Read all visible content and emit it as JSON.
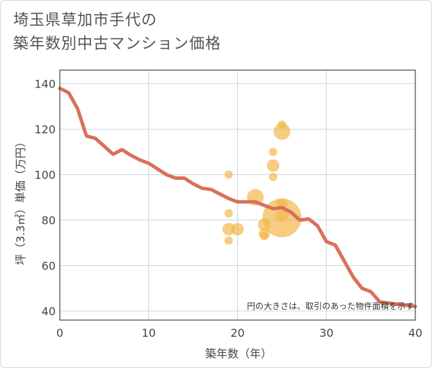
{
  "chart_data": {
    "type": "scatter",
    "title": "埼玉県草加市手代の築年数別中古マンション価格",
    "title_lines": [
      "埼玉県草加市手代の",
      "築年数別中古マンション価格"
    ],
    "xlabel": "築年数（年）",
    "ylabel": "坪（3.3㎡）単価（万円）",
    "xlim": [
      0,
      40
    ],
    "ylim": [
      36,
      146
    ],
    "xticks": [
      0,
      10,
      20,
      30,
      40
    ],
    "yticks": [
      40,
      60,
      80,
      100,
      120,
      140
    ],
    "grid": true,
    "note": "円の大きさは、取引のあった物件面積を示す",
    "colors": {
      "line": "#d9705a",
      "bubble": "#f2b84b",
      "grid": "#c9d6e3",
      "axis": "#444444"
    },
    "series": [
      {
        "name": "trend",
        "type": "line",
        "x": [
          0,
          1,
          2,
          3,
          4,
          5,
          6,
          7,
          8,
          9,
          10,
          11,
          12,
          13,
          14,
          15,
          16,
          17,
          18,
          19,
          20,
          21,
          22,
          23,
          24,
          25,
          26,
          27,
          28,
          29,
          30,
          31,
          32,
          33,
          34,
          35,
          36,
          37,
          38,
          39,
          40
        ],
        "y": [
          138,
          136,
          129,
          117,
          116,
          112.5,
          109,
          111,
          108.5,
          106.5,
          105,
          102.5,
          100,
          98.5,
          98.5,
          96,
          94,
          93.5,
          91.5,
          89.5,
          88,
          88,
          88,
          86.5,
          85,
          85.5,
          83.5,
          80,
          80.5,
          77.5,
          70.5,
          69,
          62,
          55,
          50,
          48.5,
          44,
          43.5,
          43,
          42.5,
          42
        ]
      },
      {
        "name": "transactions",
        "type": "bubble",
        "points": [
          {
            "x": 19,
            "y": 100,
            "size": 12
          },
          {
            "x": 19,
            "y": 83,
            "size": 12
          },
          {
            "x": 19,
            "y": 76,
            "size": 18
          },
          {
            "x": 19,
            "y": 71,
            "size": 12
          },
          {
            "x": 20,
            "y": 76,
            "size": 18
          },
          {
            "x": 22,
            "y": 90,
            "size": 24
          },
          {
            "x": 23,
            "y": 78,
            "size": 18
          },
          {
            "x": 23,
            "y": 74,
            "size": 16
          },
          {
            "x": 23,
            "y": 73,
            "size": 12
          },
          {
            "x": 24,
            "y": 110,
            "size": 12
          },
          {
            "x": 24,
            "y": 104,
            "size": 18
          },
          {
            "x": 24,
            "y": 99,
            "size": 12
          },
          {
            "x": 25,
            "y": 122,
            "size": 12
          },
          {
            "x": 25,
            "y": 119,
            "size": 24
          },
          {
            "x": 25,
            "y": 87,
            "size": 16
          },
          {
            "x": 25,
            "y": 82,
            "size": 18
          },
          {
            "x": 25,
            "y": 81,
            "size": 56
          }
        ]
      }
    ]
  }
}
